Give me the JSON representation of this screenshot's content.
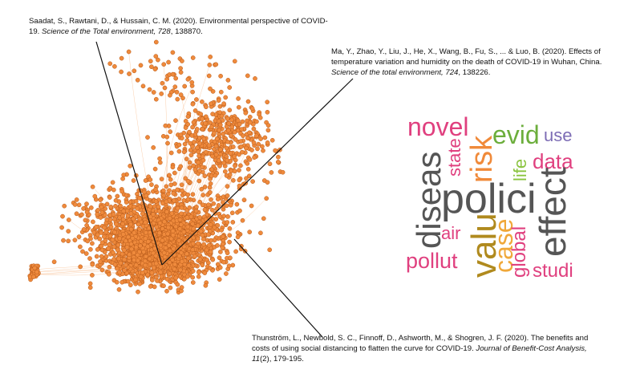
{
  "citations": [
    {
      "authors": "Saadat, S., Rawtani, D., & Hussain, C. M. (2020). Environmental perspective of COVID-19. ",
      "journal": "Science of the Total environment, 728",
      "tail": ", 138870."
    },
    {
      "authors": "Ma, Y., Zhao, Y., Liu, J., He, X., Wang, B., Fu, S., ... & Luo, B. (2020). Effects of temperature variation and humidity on the death of COVID-19 in Wuhan, China. ",
      "journal": "Science of the total environment, 724",
      "tail": ", 138226."
    },
    {
      "authors": "Thunström, L., Newbold, S. C., Finnoff, D., Ashworth, M., & Shogren, J. F. (2020). The benefits and costs of using social distancing to flatten the curve for COVID-19. ",
      "journal": "Journal of Benefit-Cost Analysis, 11",
      "tail": "(2), 179-195."
    }
  ],
  "wordcloud": {
    "words": [
      {
        "text": "novel",
        "color": "#e0407f"
      },
      {
        "text": "state",
        "color": "#e0407f"
      },
      {
        "text": "risk",
        "color": "#f08a3a"
      },
      {
        "text": "evid",
        "color": "#6cae3c"
      },
      {
        "text": "use",
        "color": "#7d6db5"
      },
      {
        "text": "life",
        "color": "#8ac43f"
      },
      {
        "text": "data",
        "color": "#e0407f"
      },
      {
        "text": "diseas",
        "color": "#555555"
      },
      {
        "text": "polici",
        "color": "#555555"
      },
      {
        "text": "effect",
        "color": "#555555"
      },
      {
        "text": "air",
        "color": "#e0407f"
      },
      {
        "text": "valu",
        "color": "#b08a1e"
      },
      {
        "text": "case",
        "color": "#f0a83a"
      },
      {
        "text": "global",
        "color": "#e0407f"
      },
      {
        "text": "pollut",
        "color": "#e0407f"
      },
      {
        "text": "studi",
        "color": "#e0407f"
      }
    ]
  },
  "colors": {
    "node_fill": "#ef8a3c",
    "node_stroke": "#b75a1a",
    "edge": "#f6b07a",
    "pointer": "#111111"
  }
}
